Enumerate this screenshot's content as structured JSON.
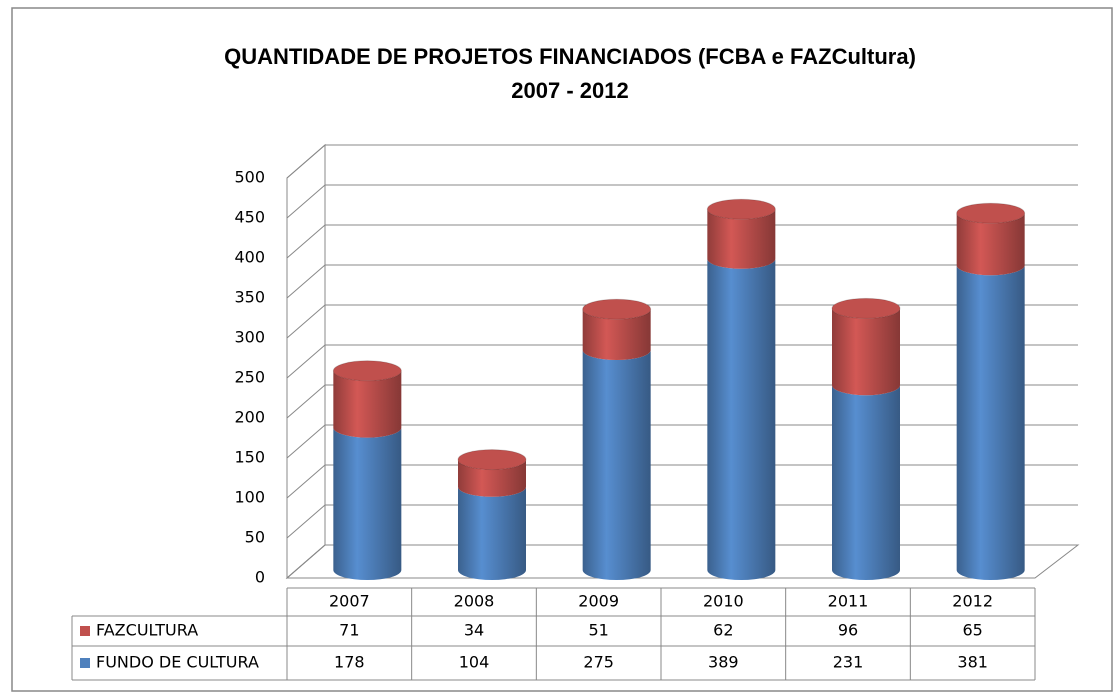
{
  "chart_data": {
    "type": "bar3d_stacked",
    "title": "QUANTIDADE DE PROJETOS FINANCIADOS (FCBA e FAZCultura)",
    "subtitle": "2007 - 2012",
    "categories": [
      "2007",
      "2008",
      "2009",
      "2010",
      "2011",
      "2012"
    ],
    "series": [
      {
        "name": "FAZCULTURA",
        "color": "#c0504d",
        "values": [
          71,
          34,
          51,
          62,
          96,
          65
        ]
      },
      {
        "name": "FUNDO DE CULTURA",
        "color": "#4f81bd",
        "values": [
          178,
          104,
          275,
          389,
          231,
          381
        ]
      }
    ],
    "ylim": [
      0,
      500
    ],
    "yticks": [
      0,
      50,
      100,
      150,
      200,
      250,
      300,
      350,
      400,
      450,
      500
    ],
    "grid": true,
    "stack_order": "last series at bottom"
  }
}
